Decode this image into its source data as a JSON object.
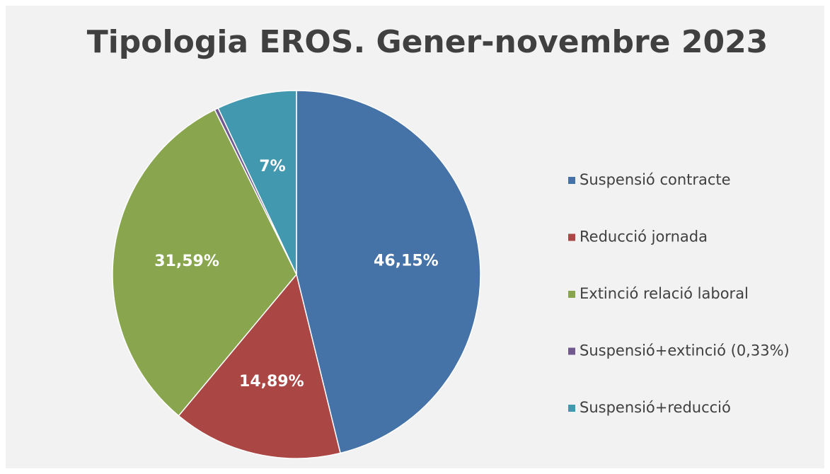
{
  "chart_data": {
    "type": "pie",
    "title": "Tipologia EROS. Gener-novembre 2023",
    "categories": [
      "Suspensió contracte",
      "Reducció jornada",
      "Extinció relació laboral",
      "Suspensió+extinció (0,33%)",
      "Suspensió+reducció"
    ],
    "values": [
      46.15,
      14.89,
      31.59,
      0.33,
      7
    ],
    "value_labels": [
      "46,15%",
      "14,89%",
      "31,59%",
      null,
      "7%"
    ],
    "colors": [
      "#4572a7",
      "#aa4643",
      "#89a54e",
      "#71588f",
      "#4198af"
    ],
    "legend": "right"
  }
}
